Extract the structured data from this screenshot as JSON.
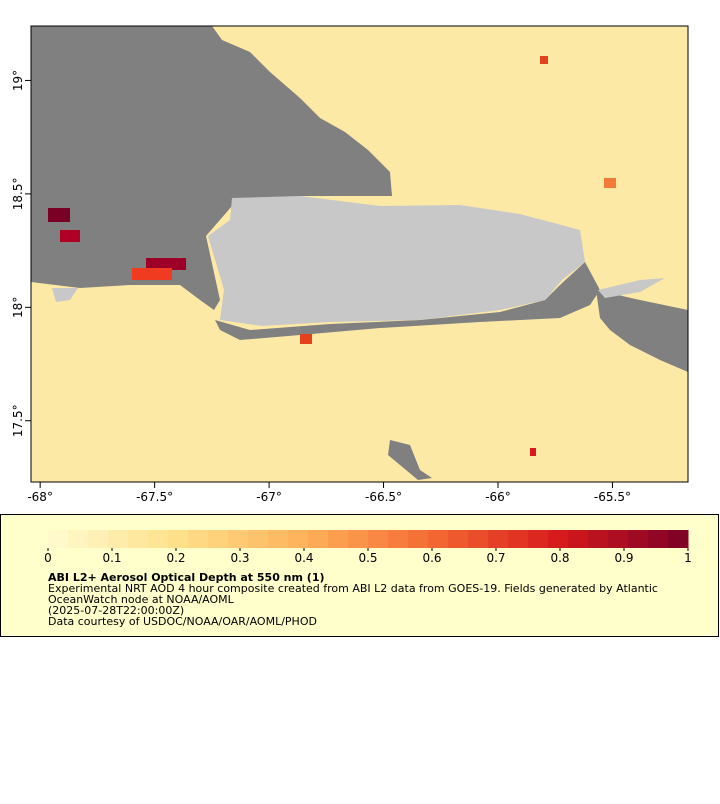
{
  "map": {
    "xlim": [
      -68.04,
      -65.17
    ],
    "ylim": [
      17.23,
      19.24
    ],
    "xticks": [
      {
        "value": -68,
        "label": "-68°"
      },
      {
        "value": -67.5,
        "label": "-67.5°"
      },
      {
        "value": -67,
        "label": "-67°"
      },
      {
        "value": -66.5,
        "label": "-66.5°"
      },
      {
        "value": -66,
        "label": "-66°"
      },
      {
        "value": -65.5,
        "label": "-65.5°"
      }
    ],
    "yticks": [
      {
        "value": 19,
        "label": "19°"
      },
      {
        "value": 18.5,
        "label": "18.5°"
      },
      {
        "value": 18,
        "label": "18°"
      },
      {
        "value": 17.5,
        "label": "17.5°"
      }
    ]
  },
  "colorbar": {
    "range": [
      0,
      1
    ],
    "ticks": [
      0,
      0.1,
      0.2,
      0.3,
      0.4,
      0.5,
      0.6,
      0.7,
      0.8,
      0.9,
      1
    ],
    "colors": [
      "#fffbd2",
      "#fee08b",
      "#fdb25a",
      "#f46a32",
      "#d7191c",
      "#7a0026"
    ]
  },
  "caption": {
    "title": "ABI L2+ Aerosol Optical Depth at 550 nm (1)",
    "lines": [
      "Experimental NRT AOD 4 hour composite created from ABI L2 data from GOES-19. Fields generated by Atlantic",
      "OceanWatch node at NOAA/AOML",
      "(2025-07-28T22:00:00Z)",
      "Data courtesy of USDOC/NOAA/OAR/AOML/PHOD"
    ]
  }
}
